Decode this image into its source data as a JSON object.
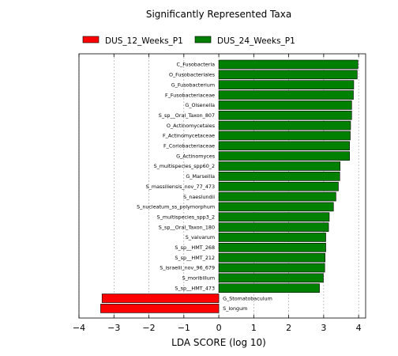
{
  "chart_data": {
    "type": "bar",
    "orientation": "horizontal",
    "title": "Significantly Represented Taxa",
    "xlabel": "LDA SCORE (log 10)",
    "ylabel": "",
    "xlim": [
      -4,
      4.2
    ],
    "xticks": [
      -4,
      -3,
      -2,
      -1,
      0,
      1,
      2,
      3,
      4
    ],
    "xtick_labels": [
      "−4",
      "−3",
      "−2",
      "−1",
      "0",
      "1",
      "2",
      "3",
      "4"
    ],
    "grid": "vertical dashed",
    "legend_position": "top",
    "series": [
      {
        "name": "DUS_12_Weeks_P1",
        "color": "#ff0000"
      },
      {
        "name": "DUS_24_Weeks_P1",
        "color": "#008000"
      }
    ],
    "bars": [
      {
        "label": "C_Fusobacteria",
        "value": 3.98,
        "group": 1
      },
      {
        "label": "O_Fusobacteriales",
        "value": 3.96,
        "group": 1
      },
      {
        "label": "G_Fusobacterium",
        "value": 3.86,
        "group": 1
      },
      {
        "label": "F_Fusobacteriaceae",
        "value": 3.85,
        "group": 1
      },
      {
        "label": "G_Olsenella",
        "value": 3.8,
        "group": 1
      },
      {
        "label": "S_sp__Oral_Taxon_807",
        "value": 3.8,
        "group": 1
      },
      {
        "label": "O_Actinomycetales",
        "value": 3.77,
        "group": 1
      },
      {
        "label": "F_Actinomycetaceae",
        "value": 3.76,
        "group": 1
      },
      {
        "label": "F_Coriobacteriaceae",
        "value": 3.74,
        "group": 1
      },
      {
        "label": "G_Actinomyces",
        "value": 3.74,
        "group": 1
      },
      {
        "label": "S_multispecies_spp60_2",
        "value": 3.47,
        "group": 1
      },
      {
        "label": "G_Marseilla",
        "value": 3.46,
        "group": 1
      },
      {
        "label": "S_massiliensis_nov_77_473",
        "value": 3.42,
        "group": 1
      },
      {
        "label": "S_naeslundii",
        "value": 3.35,
        "group": 1
      },
      {
        "label": "S_nucleatum_ss_polymorphum",
        "value": 3.28,
        "group": 1
      },
      {
        "label": "S_multispecies_spp3_2",
        "value": 3.16,
        "group": 1
      },
      {
        "label": "S_sp__Oral_Taxon_180",
        "value": 3.14,
        "group": 1
      },
      {
        "label": "S_vaivarum",
        "value": 3.06,
        "group": 1
      },
      {
        "label": "S_sp__HMT_268",
        "value": 3.06,
        "group": 1
      },
      {
        "label": "S_sp__HMT_212",
        "value": 3.04,
        "group": 1
      },
      {
        "label": "S_israelii_nov_96_679",
        "value": 3.03,
        "group": 1
      },
      {
        "label": "S_moribillum",
        "value": 2.99,
        "group": 1
      },
      {
        "label": "S_sp__HMT_473",
        "value": 2.88,
        "group": 1
      },
      {
        "label": "G_Stomatobaculum",
        "value": -3.34,
        "group": 0
      },
      {
        "label": "S_longum",
        "value": -3.38,
        "group": 0
      }
    ]
  }
}
